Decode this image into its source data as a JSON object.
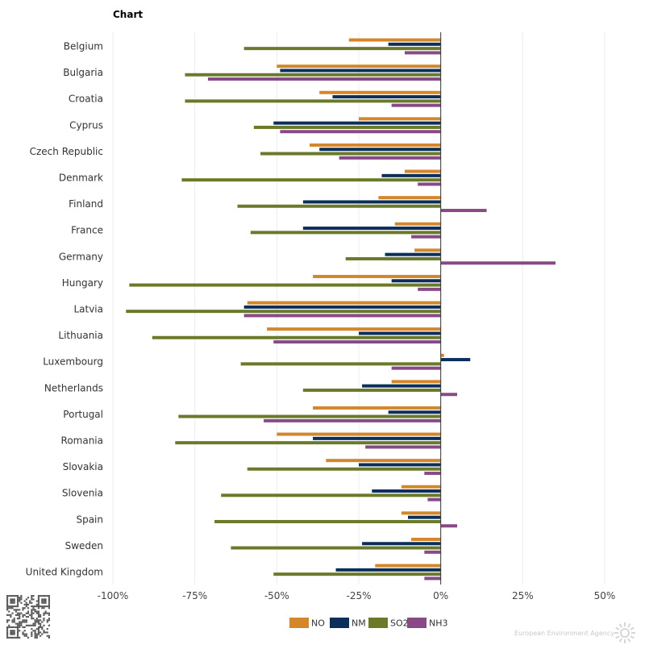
{
  "title": "Chart",
  "footer": {
    "agency_name": "European Environment Agency"
  },
  "colors": {
    "NOx": "#d4862b",
    "NMVOC": "#0b2e5a",
    "SOx": "#6b7a2a",
    "NH3": "#874a86"
  },
  "chart_data": {
    "type": "bar",
    "orientation": "horizontal",
    "title": "Chart",
    "xlabel": "",
    "ylabel": "",
    "xlim": [
      -100,
      50
    ],
    "x_ticks": [
      -100,
      -75,
      -50,
      -25,
      0,
      25,
      50
    ],
    "x_tick_labels": [
      "-100%",
      "-75%",
      "-50%",
      "-25%",
      "0%",
      "25%",
      "50%"
    ],
    "grid": true,
    "legend_position": "bottom",
    "categories": [
      "Belgium",
      "Bulgaria",
      "Croatia",
      "Cyprus",
      "Czech Republic",
      "Denmark",
      "Finland",
      "France",
      "Germany",
      "Hungary",
      "Latvia",
      "Lithuania",
      "Luxembourg",
      "Netherlands",
      "Portugal",
      "Romania",
      "Slovakia",
      "Slovenia",
      "Spain",
      "Sweden",
      "United Kingdom"
    ],
    "series": [
      {
        "name": "NOx",
        "legend_label": "NO",
        "color": "#d4862b",
        "values": [
          -28,
          -50,
          -37,
          -25,
          -40,
          -11,
          -19,
          -14,
          -8,
          -39,
          -59,
          -53,
          1,
          -15,
          -39,
          -50,
          -35,
          -12,
          -12,
          -9,
          -20
        ]
      },
      {
        "name": "NMVOC",
        "legend_label": "NM",
        "color": "#0b2e5a",
        "values": [
          -16,
          -49,
          -33,
          -51,
          -37,
          -18,
          -42,
          -42,
          -17,
          -15,
          -60,
          -25,
          9,
          -24,
          -16,
          -39,
          -25,
          -21,
          -10,
          -24,
          -32
        ]
      },
      {
        "name": "SOx",
        "legend_label": "SO2",
        "color": "#6b7a2a",
        "values": [
          -60,
          -78,
          -78,
          -57,
          -55,
          -79,
          -62,
          -58,
          -29,
          -95,
          -96,
          -88,
          -61,
          -42,
          -80,
          -81,
          -59,
          -67,
          -69,
          -64,
          -51
        ]
      },
      {
        "name": "NH3",
        "legend_label": "NH3",
        "color": "#874a86",
        "values": [
          -11,
          -71,
          -15,
          -49,
          -31,
          -7,
          14,
          -9,
          35,
          -7,
          -60,
          -51,
          -15,
          5,
          -54,
          -23,
          -5,
          -4,
          5,
          -5,
          -5
        ]
      }
    ]
  }
}
